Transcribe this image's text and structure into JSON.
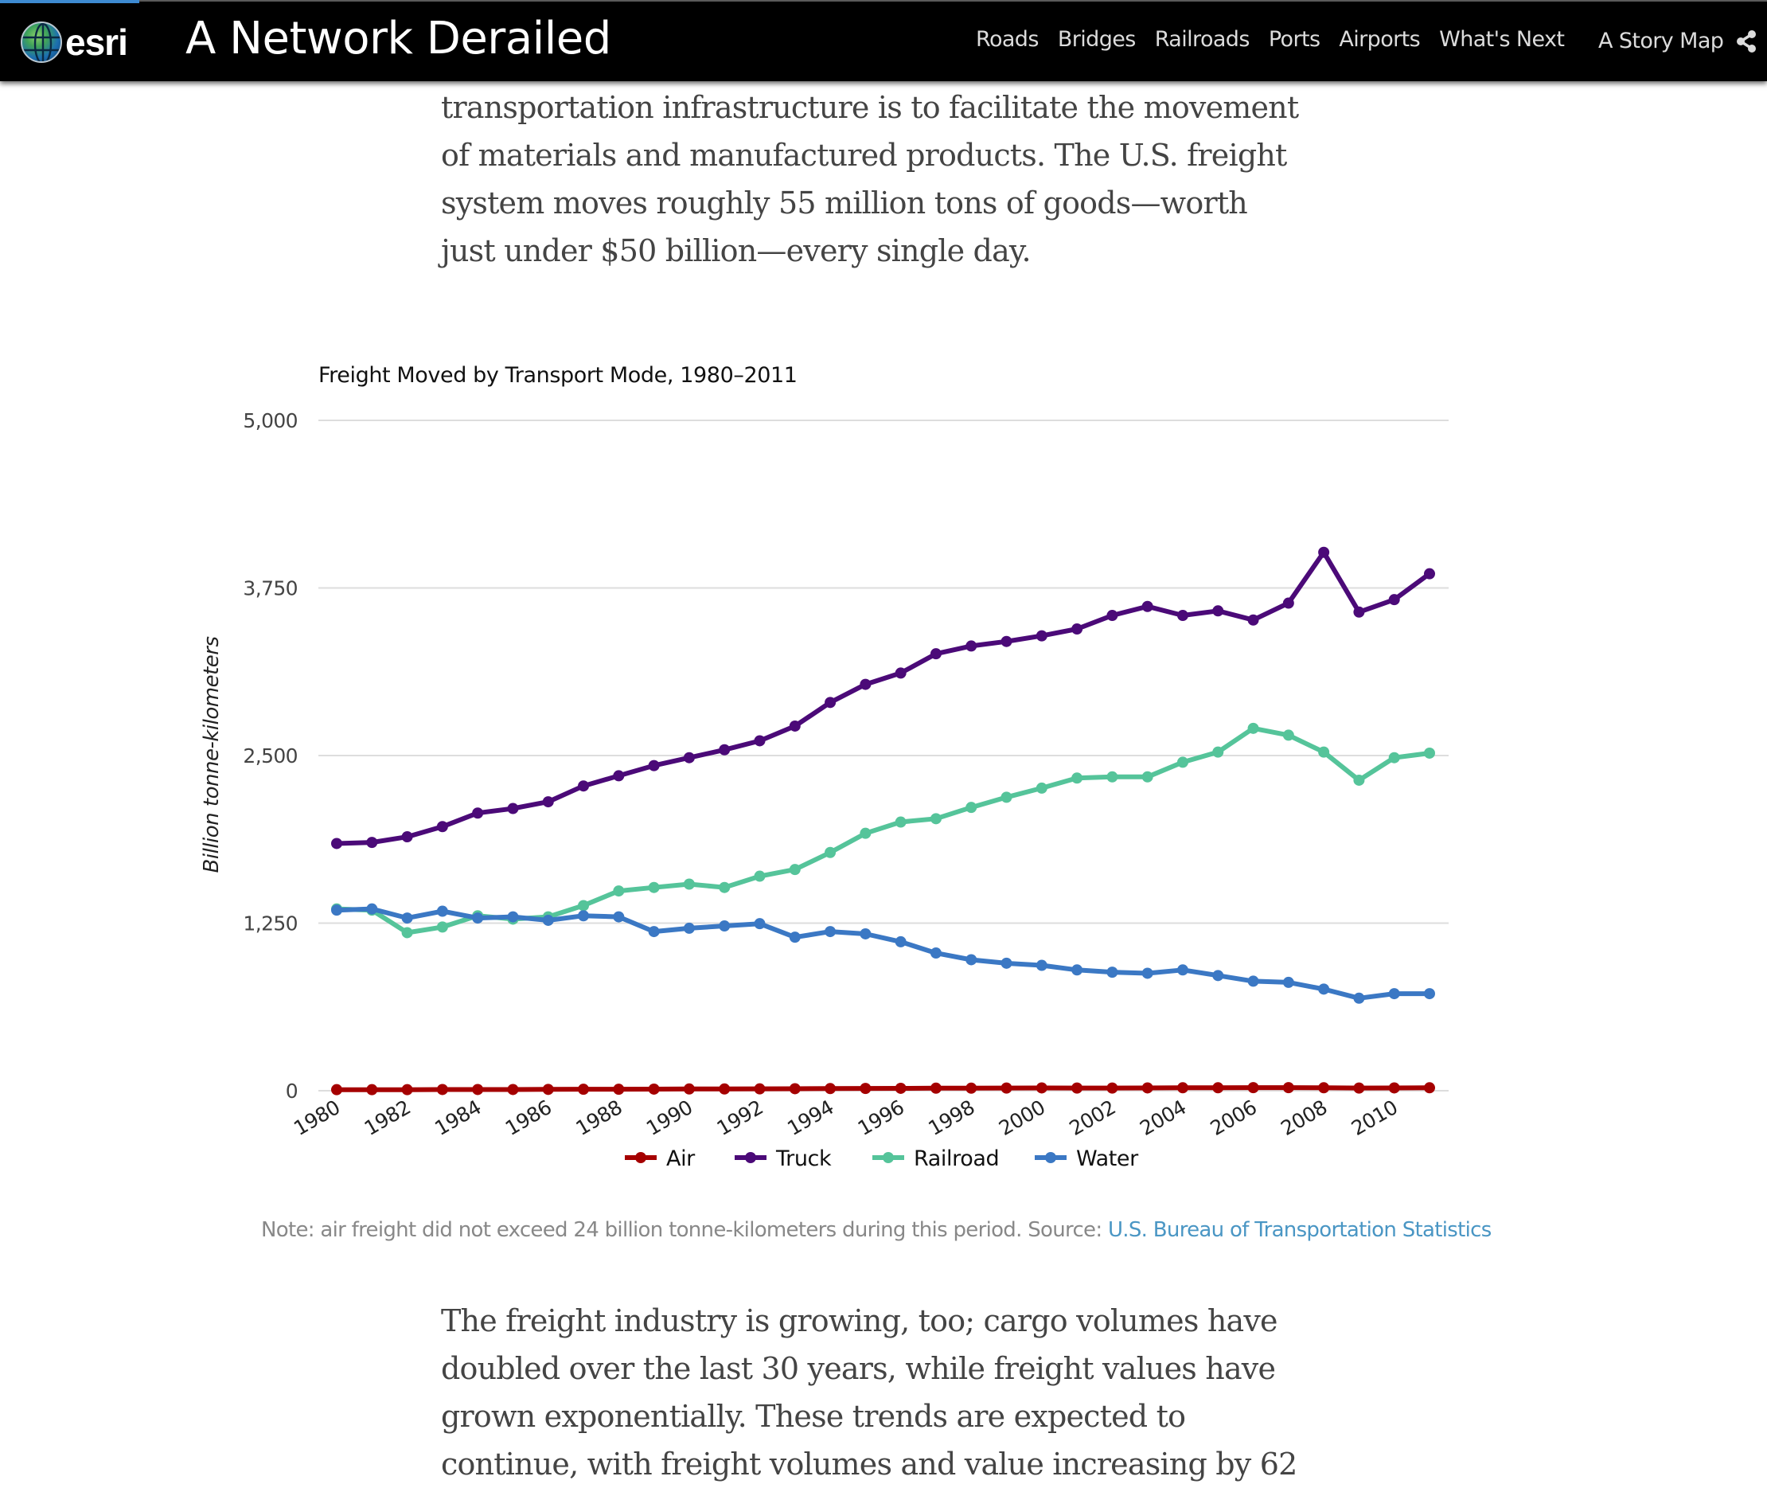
{
  "header": {
    "logo_text": "esri",
    "title": "A Network Derailed",
    "nav": [
      "Roads",
      "Bridges",
      "Railroads",
      "Ports",
      "Airports",
      "What's Next"
    ],
    "story_map_label": "A Story Map",
    "share_icon": "share-icon",
    "progress_percent": 8
  },
  "article": {
    "paragraph_before": "transportation infrastructure is to facilitate the movement of materials and manufactured products. The U.S. freight system moves roughly 55 million tons of goods—worth just under $50 billion—every single day.",
    "paragraph_before_lines": [
      "transportation infrastructure is to facilitate the movement",
      "of materials and manufactured products. The U.S. freight",
      "system moves roughly 55 million tons of goods—worth",
      "just under $50 billion—every single day."
    ],
    "paragraph_after_lines": [
      "The freight industry is growing, too; cargo volumes have",
      "doubled over the last 30 years, while freight values have",
      "grown exponentially. These trends are expected to",
      "continue, with freight volumes and value increasing by 62"
    ]
  },
  "note": {
    "text": "Note: air freight did not exceed 24 billion tonne-kilometers during this period. Source: ",
    "link_text": "U.S. Bureau of Transportation Statistics"
  },
  "chart_data": {
    "type": "line",
    "title": "Freight Moved by Transport Mode, 1980–2011",
    "xlabel": "",
    "ylabel": "Billion tonne-kilometers",
    "ylim": [
      0,
      5000
    ],
    "yticks": [
      0,
      1250,
      2500,
      3750,
      5000
    ],
    "ytick_labels": [
      "0",
      "1,250",
      "2,500",
      "3,750",
      "5,000"
    ],
    "grid": true,
    "legend_position": "bottom",
    "x": [
      1980,
      1981,
      1982,
      1983,
      1984,
      1985,
      1986,
      1987,
      1988,
      1989,
      1990,
      1991,
      1992,
      1993,
      1994,
      1995,
      1996,
      1997,
      1998,
      1999,
      2000,
      2001,
      2002,
      2003,
      2004,
      2005,
      2006,
      2007,
      2008,
      2009,
      2010,
      2011
    ],
    "xtick_labels": [
      "1980",
      "1982",
      "1984",
      "1986",
      "1988",
      "1990",
      "1992",
      "1994",
      "1996",
      "1998",
      "2000",
      "2002",
      "2004",
      "2006",
      "2008",
      "2010"
    ],
    "series": [
      {
        "name": "Air",
        "color": "#a50000",
        "values": [
          8,
          8,
          8,
          9,
          9,
          9,
          10,
          11,
          11,
          12,
          13,
          13,
          14,
          15,
          16,
          17,
          18,
          19,
          19,
          20,
          21,
          20,
          20,
          21,
          22,
          22,
          23,
          23,
          22,
          20,
          21,
          22
        ]
      },
      {
        "name": "Truck",
        "color": "#4b0a78",
        "values": [
          1844,
          1852,
          1894,
          1970,
          2071,
          2105,
          2155,
          2273,
          2349,
          2425,
          2484,
          2543,
          2610,
          2720,
          2896,
          3031,
          3115,
          3259,
          3317,
          3351,
          3393,
          3444,
          3545,
          3612,
          3545,
          3579,
          3511,
          3637,
          4016,
          3570,
          3663,
          3856
        ]
      },
      {
        "name": "Railroad",
        "color": "#55c49a",
        "values": [
          1356,
          1347,
          1179,
          1221,
          1305,
          1280,
          1297,
          1381,
          1490,
          1516,
          1541,
          1516,
          1600,
          1650,
          1777,
          1920,
          2004,
          2029,
          2113,
          2189,
          2257,
          2332,
          2341,
          2341,
          2450,
          2526,
          2703,
          2652,
          2526,
          2316,
          2484,
          2518
        ]
      },
      {
        "name": "Water",
        "color": "#3b78c4",
        "values": [
          1347,
          1356,
          1288,
          1339,
          1288,
          1297,
          1271,
          1305,
          1297,
          1187,
          1212,
          1229,
          1246,
          1145,
          1187,
          1170,
          1111,
          1027,
          977,
          951,
          935,
          901,
          884,
          876,
          901,
          859,
          817,
          808,
          758,
          690,
          724,
          724
        ]
      }
    ]
  }
}
